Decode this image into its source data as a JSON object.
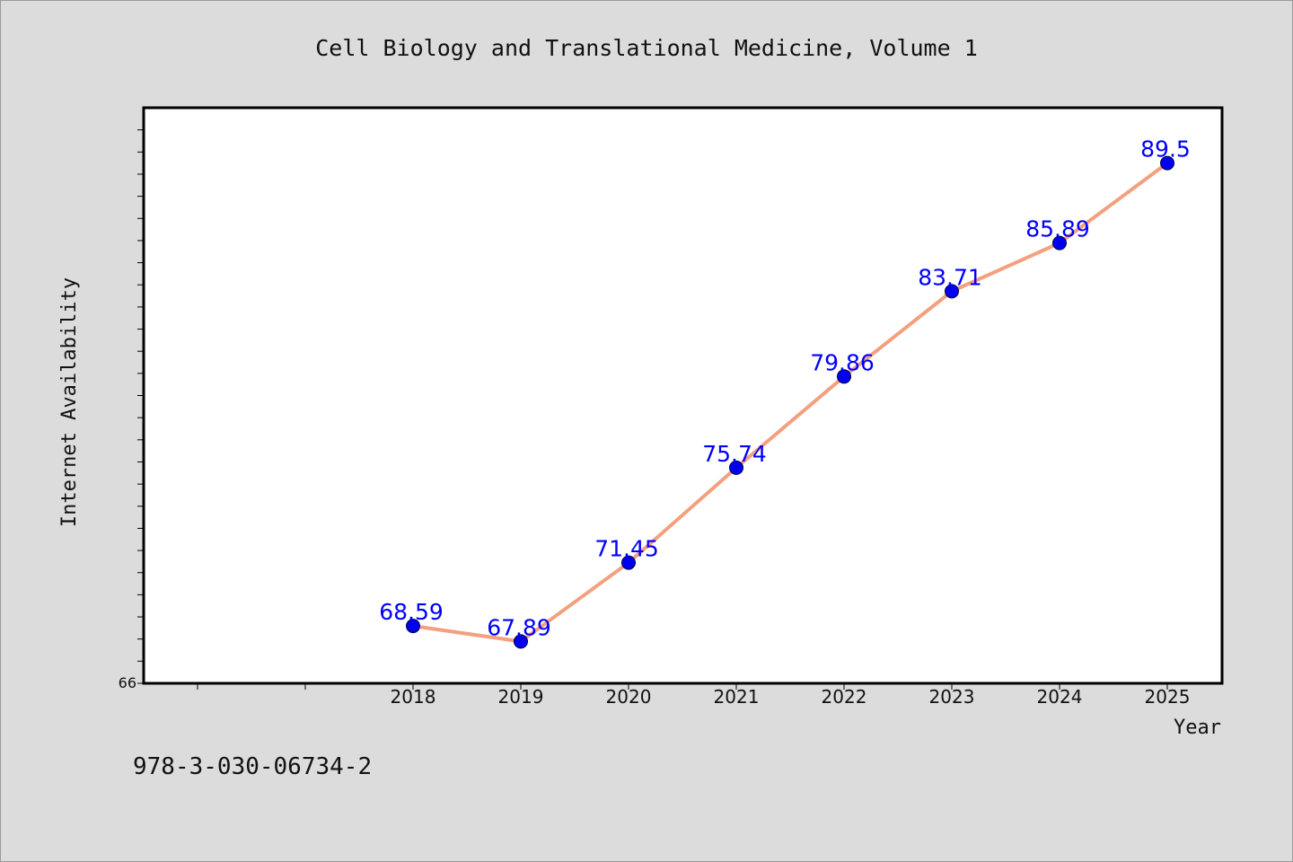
{
  "title": "Cell Biology and Translational Medicine, Volume 1",
  "footer_code": "978-3-030-06734-2",
  "y_min_label": "66",
  "colors": {
    "background": "#dcdcdc",
    "plot_background": "#ffffff",
    "line": "#f4a07f",
    "marker": "#0000ee",
    "data_label": "#0000ff"
  },
  "chart_data": {
    "type": "line",
    "title": "Cell Biology and Translational Medicine, Volume 1",
    "xlabel": "Year",
    "ylabel": "Internet Availability",
    "x": [
      "2018",
      "2019",
      "2020",
      "2021",
      "2022",
      "2023",
      "2024",
      "2025"
    ],
    "series": [
      {
        "values": [
          68.59,
          67.89,
          71.45,
          75.74,
          79.86,
          83.71,
          85.89,
          89.5
        ]
      }
    ],
    "data_labels": [
      "68.59",
      "67.89",
      "71.45",
      "75.74",
      "79.86",
      "83.71",
      "85.89",
      "89.5"
    ],
    "ylim": [
      66,
      92
    ],
    "y_minor_tick_step": 1,
    "grid": false,
    "legend": "none"
  }
}
